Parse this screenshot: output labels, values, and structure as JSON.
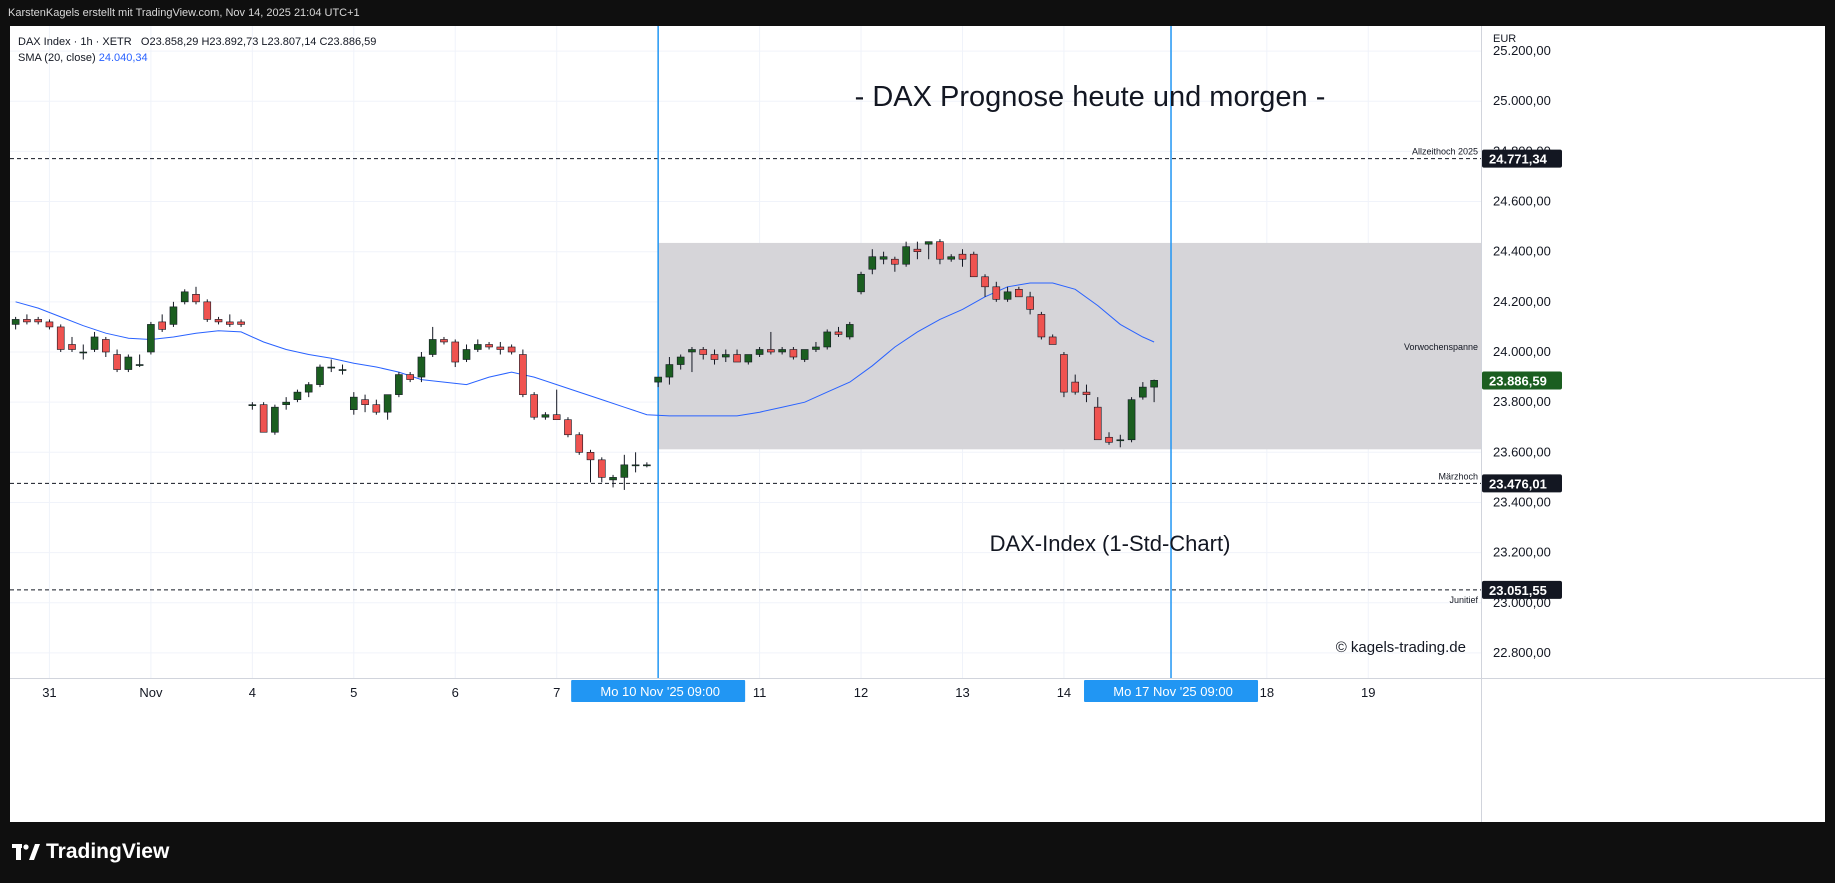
{
  "header": {
    "credit": "KarstenKagels erstellt mit TradingView.com, Nov 14, 2025 21:04 UTC+1"
  },
  "legend": {
    "symbol": "DAX Index · 1h · XETR",
    "ohlc": "O23.858,29  H23.892,73  L23.807,14  C23.886,59",
    "sma_label": "SMA (20, close)",
    "sma_value": "24.040,34"
  },
  "footer": {
    "brand": "TradingView",
    "logo_icon": "tradingview-logo-icon"
  },
  "colors": {
    "up": "#1b5e20",
    "down": "#ef5350",
    "sma": "#2962ff",
    "zone": "#d6d5d9",
    "marker": "#2196f3"
  },
  "chart_data": {
    "type": "candlestick",
    "title": "- DAX Prognose heute und morgen -",
    "subtitle": "DAX-Index (1-Std-Chart)",
    "watermark": "© kagels-trading.de",
    "currency": "EUR",
    "ylim": [
      22700,
      25300
    ],
    "y_ticks": [
      22800,
      23000,
      23200,
      23400,
      23600,
      23800,
      24000,
      24200,
      24400,
      24600,
      24800,
      25000,
      25200
    ],
    "y_tick_labels": [
      "22.800,00",
      "23.000,00",
      "23.200,00",
      "23.400,00",
      "23.600,00",
      "23.800,00",
      "24.000,00",
      "24.200,00",
      "24.400,00",
      "24.600,00",
      "24.800,00",
      "25.000,00",
      "25.200,00"
    ],
    "x_range": [
      -2.5,
      128
    ],
    "x_ticks": [
      {
        "label": "31",
        "x": 1
      },
      {
        "label": "Nov",
        "x": 10
      },
      {
        "label": "4",
        "x": 19
      },
      {
        "label": "5",
        "x": 28
      },
      {
        "label": "6",
        "x": 37
      },
      {
        "label": "7",
        "x": 46
      },
      {
        "label": "11",
        "x": 64
      },
      {
        "label": "12",
        "x": 73
      },
      {
        "label": "13",
        "x": 82
      },
      {
        "label": "14",
        "x": 91
      },
      {
        "label": "18",
        "x": 109
      },
      {
        "label": "19",
        "x": 118
      }
    ],
    "x_markers": [
      {
        "label": "Mo 10 Nov '25   09:00",
        "x": 55
      },
      {
        "label": "Mo 17 Nov '25   09:00",
        "x": 100.5
      }
    ],
    "zone": {
      "label": "Vorwochenspanne",
      "x_from": 55,
      "x_to": 128,
      "y_from": 23612,
      "y_to": 24435
    },
    "levels": [
      {
        "label": "Allzeithoch 2025",
        "value": 24771.34,
        "text": "24.771,34"
      },
      {
        "label": "Märzhoch",
        "value": 23476.01,
        "text": "23.476,01"
      },
      {
        "label": "Junitief",
        "value": 23051.55,
        "text": "23.051,55"
      }
    ],
    "last_price": {
      "value": 23886.59,
      "text": "23.886,59"
    },
    "candles": [
      [
        -2,
        24110,
        24140,
        24090,
        24130
      ],
      [
        -1,
        24130,
        24150,
        24110,
        24120
      ],
      [
        0,
        24130,
        24140,
        24110,
        24120
      ],
      [
        1,
        24120,
        24130,
        24090,
        24100
      ],
      [
        2,
        24100,
        24110,
        24000,
        24010
      ],
      [
        3,
        24030,
        24060,
        24000,
        24010
      ],
      [
        4,
        24000,
        24030,
        23970,
        24000
      ],
      [
        5,
        24010,
        24080,
        24000,
        24060
      ],
      [
        6,
        24050,
        24060,
        23980,
        24000
      ],
      [
        7,
        23990,
        24010,
        23920,
        23930
      ],
      [
        8,
        23930,
        23990,
        23920,
        23980
      ],
      [
        9,
        23950,
        23990,
        23940,
        23950
      ],
      [
        10,
        24000,
        24120,
        23990,
        24110
      ],
      [
        11,
        24120,
        24150,
        24080,
        24090
      ],
      [
        12,
        24110,
        24200,
        24100,
        24180
      ],
      [
        13,
        24200,
        24250,
        24190,
        24240
      ],
      [
        14,
        24230,
        24260,
        24190,
        24200
      ],
      [
        15,
        24200,
        24210,
        24120,
        24130
      ],
      [
        16,
        24130,
        24140,
        24110,
        24120
      ],
      [
        17,
        24120,
        24150,
        24100,
        24110
      ],
      [
        18,
        24120,
        24130,
        24100,
        24110
      ],
      [
        19,
        23790,
        23800,
        23770,
        23790
      ],
      [
        20,
        23790,
        23800,
        23680,
        23680
      ],
      [
        21,
        23680,
        23790,
        23670,
        23780
      ],
      [
        22,
        23790,
        23820,
        23770,
        23800
      ],
      [
        23,
        23810,
        23850,
        23800,
        23840
      ],
      [
        24,
        23840,
        23880,
        23820,
        23870
      ],
      [
        25,
        23870,
        23950,
        23860,
        23940
      ],
      [
        26,
        23940,
        23970,
        23920,
        23940
      ],
      [
        27,
        23930,
        23950,
        23910,
        23930
      ],
      [
        28,
        23770,
        23840,
        23750,
        23820
      ],
      [
        29,
        23810,
        23830,
        23760,
        23790
      ],
      [
        30,
        23790,
        23810,
        23750,
        23760
      ],
      [
        31,
        23760,
        23810,
        23730,
        23830
      ],
      [
        32,
        23830,
        23920,
        23820,
        23910
      ],
      [
        33,
        23910,
        23920,
        23880,
        23890
      ],
      [
        34,
        23900,
        24000,
        23880,
        23980
      ],
      [
        35,
        23990,
        24100,
        23980,
        24050
      ],
      [
        36,
        24050,
        24060,
        24030,
        24040
      ],
      [
        37,
        24040,
        24050,
        23940,
        23960
      ],
      [
        38,
        23970,
        24030,
        23960,
        24010
      ],
      [
        39,
        24010,
        24050,
        24000,
        24030
      ],
      [
        40,
        24030,
        24040,
        24010,
        24020
      ],
      [
        41,
        24020,
        24040,
        23990,
        24010
      ],
      [
        42,
        24020,
        24030,
        23990,
        24000
      ],
      [
        43,
        23990,
        24010,
        23820,
        23830
      ],
      [
        44,
        23830,
        23840,
        23730,
        23740
      ],
      [
        45,
        23740,
        23760,
        23730,
        23750
      ],
      [
        46,
        23750,
        23850,
        23740,
        23730
      ],
      [
        47,
        23730,
        23740,
        23660,
        23670
      ],
      [
        48,
        23670,
        23680,
        23590,
        23600
      ],
      [
        49,
        23600,
        23610,
        23480,
        23570
      ],
      [
        50,
        23570,
        23580,
        23480,
        23500
      ],
      [
        51,
        23490,
        23510,
        23460,
        23500
      ],
      [
        52,
        23500,
        23590,
        23450,
        23550
      ],
      [
        53,
        23550,
        23600,
        23520,
        23550
      ],
      [
        54,
        23550,
        23560,
        23540,
        23550
      ],
      [
        55,
        23880,
        23900,
        23860,
        23900
      ],
      [
        56,
        23900,
        23980,
        23870,
        23950
      ],
      [
        57,
        23950,
        23990,
        23930,
        23980
      ],
      [
        58,
        24000,
        24020,
        23920,
        24010
      ],
      [
        59,
        24010,
        24020,
        23970,
        23990
      ],
      [
        60,
        23990,
        24010,
        23950,
        23970
      ],
      [
        61,
        23980,
        24010,
        23960,
        23990
      ],
      [
        62,
        23990,
        24010,
        23970,
        23960
      ],
      [
        63,
        23960,
        23990,
        23950,
        23990
      ],
      [
        64,
        23990,
        24020,
        23980,
        24010
      ],
      [
        65,
        24010,
        24080,
        23990,
        24000
      ],
      [
        66,
        24000,
        24020,
        23990,
        24010
      ],
      [
        67,
        24010,
        24020,
        23970,
        23980
      ],
      [
        68,
        23970,
        24010,
        23960,
        24010
      ],
      [
        69,
        24010,
        24040,
        24000,
        24020
      ],
      [
        70,
        24020,
        24090,
        24010,
        24080
      ],
      [
        71,
        24080,
        24100,
        24060,
        24070
      ],
      [
        72,
        24060,
        24120,
        24050,
        24110
      ],
      [
        73,
        24240,
        24320,
        24230,
        24310
      ],
      [
        74,
        24330,
        24410,
        24310,
        24380
      ],
      [
        75,
        24370,
        24400,
        24350,
        24380
      ],
      [
        76,
        24370,
        24380,
        24320,
        24350
      ],
      [
        77,
        24350,
        24440,
        24340,
        24420
      ],
      [
        78,
        24410,
        24440,
        24370,
        24400
      ],
      [
        79,
        24430,
        24440,
        24370,
        24440
      ],
      [
        80,
        24440,
        24450,
        24350,
        24370
      ],
      [
        81,
        24370,
        24390,
        24360,
        24380
      ],
      [
        82,
        24390,
        24410,
        24340,
        24370
      ],
      [
        83,
        24390,
        24400,
        24300,
        24300
      ],
      [
        84,
        24300,
        24310,
        24220,
        24260
      ],
      [
        85,
        24260,
        24280,
        24200,
        24210
      ],
      [
        86,
        24210,
        24260,
        24200,
        24240
      ],
      [
        87,
        24250,
        24260,
        24220,
        24220
      ],
      [
        88,
        24220,
        24240,
        24150,
        24170
      ],
      [
        89,
        24150,
        24160,
        24050,
        24060
      ],
      [
        90,
        24060,
        24070,
        24040,
        24030
      ],
      [
        91,
        23990,
        24000,
        23820,
        23840
      ],
      [
        92,
        23880,
        23910,
        23830,
        23840
      ],
      [
        93,
        23840,
        23870,
        23800,
        23830
      ],
      [
        94,
        23780,
        23820,
        23650,
        23650
      ],
      [
        95,
        23660,
        23680,
        23630,
        23640
      ],
      [
        96,
        23650,
        23670,
        23620,
        23650
      ],
      [
        97,
        23650,
        23820,
        23640,
        23810
      ],
      [
        98,
        23820,
        23880,
        23810,
        23860
      ],
      [
        99,
        23860,
        23890,
        23800,
        23887
      ]
    ],
    "sma": [
      [
        -2,
        24200
      ],
      [
        0,
        24175
      ],
      [
        2,
        24140
      ],
      [
        4,
        24105
      ],
      [
        6,
        24075
      ],
      [
        8,
        24055
      ],
      [
        10,
        24050
      ],
      [
        12,
        24060
      ],
      [
        14,
        24075
      ],
      [
        16,
        24085
      ],
      [
        18,
        24080
      ],
      [
        20,
        24040
      ],
      [
        22,
        24010
      ],
      [
        24,
        23990
      ],
      [
        26,
        23975
      ],
      [
        28,
        23955
      ],
      [
        30,
        23940
      ],
      [
        32,
        23920
      ],
      [
        34,
        23890
      ],
      [
        36,
        23880
      ],
      [
        38,
        23870
      ],
      [
        40,
        23900
      ],
      [
        42,
        23920
      ],
      [
        44,
        23900
      ],
      [
        46,
        23870
      ],
      [
        48,
        23840
      ],
      [
        50,
        23810
      ],
      [
        52,
        23780
      ],
      [
        54,
        23750
      ],
      [
        56,
        23745
      ],
      [
        58,
        23745
      ],
      [
        60,
        23745
      ],
      [
        62,
        23745
      ],
      [
        64,
        23760
      ],
      [
        66,
        23780
      ],
      [
        68,
        23800
      ],
      [
        70,
        23840
      ],
      [
        72,
        23880
      ],
      [
        74,
        23945
      ],
      [
        76,
        24020
      ],
      [
        78,
        24080
      ],
      [
        80,
        24130
      ],
      [
        82,
        24170
      ],
      [
        84,
        24220
      ],
      [
        86,
        24260
      ],
      [
        88,
        24275
      ],
      [
        90,
        24275
      ],
      [
        92,
        24250
      ],
      [
        94,
        24185
      ],
      [
        96,
        24110
      ],
      [
        98,
        24060
      ],
      [
        99,
        24040
      ]
    ]
  }
}
